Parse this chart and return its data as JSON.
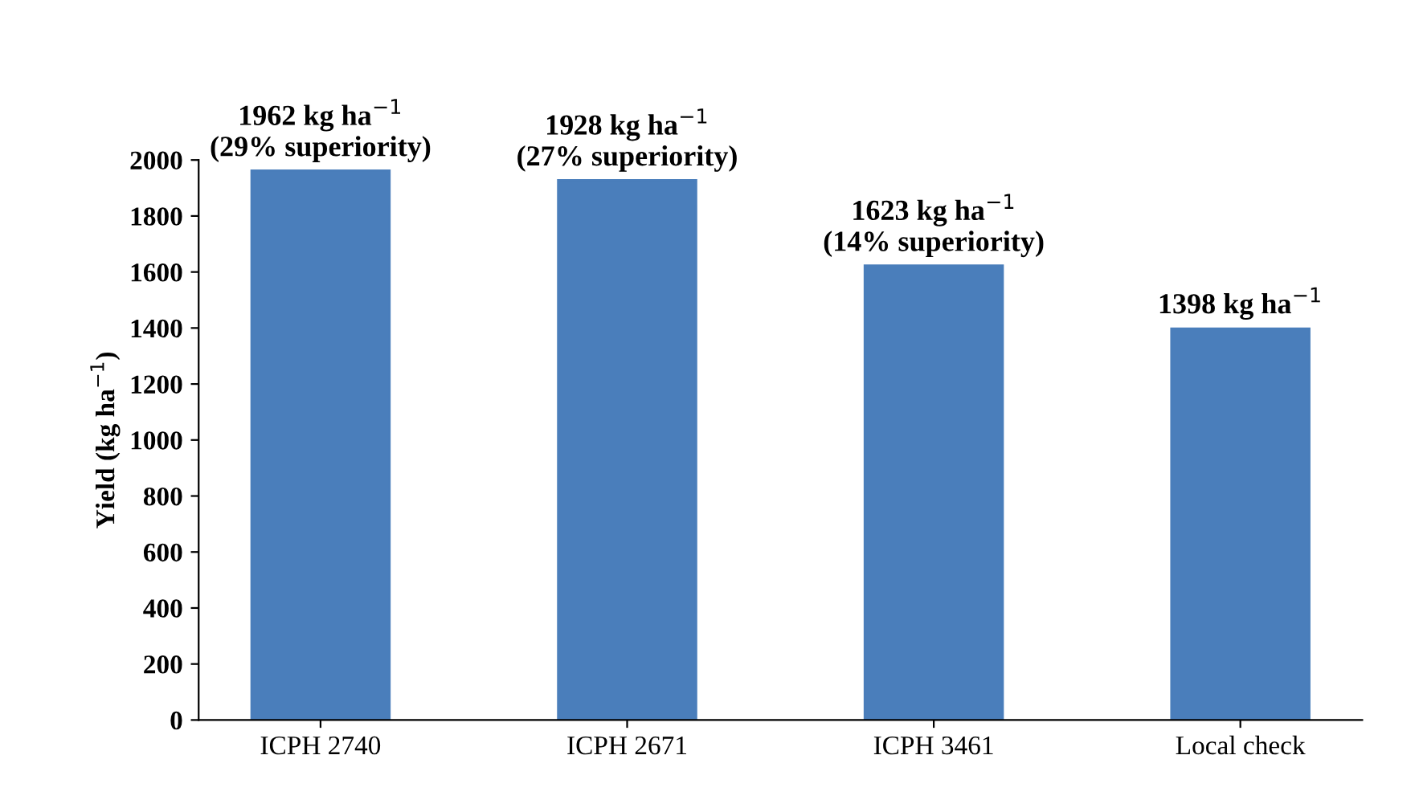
{
  "chart_data": {
    "type": "bar",
    "ylabel": "Yield (kg ha$^{−1}$)",
    "categories": [
      "ICPH 2740",
      "ICPH 2671",
      "ICPH 3461",
      "Local check"
    ],
    "values": [
      1962,
      1928,
      1623,
      1398
    ],
    "value_labels": [
      "1962 kg ha$^{−1}$\n(29% superiority)",
      "1928 kg ha$^{−1}$\n(27% superiority)",
      "1623 kg ha$^{−1}$\n(14% superiority)",
      "1398 kg ha$^{−1}$"
    ],
    "color": "#4a7ebb",
    "ylim": [
      0,
      2000
    ],
    "yticks": [
      0,
      200,
      400,
      600,
      800,
      1000,
      1200,
      1400,
      1600,
      1800,
      2000
    ],
    "grid": false
  }
}
